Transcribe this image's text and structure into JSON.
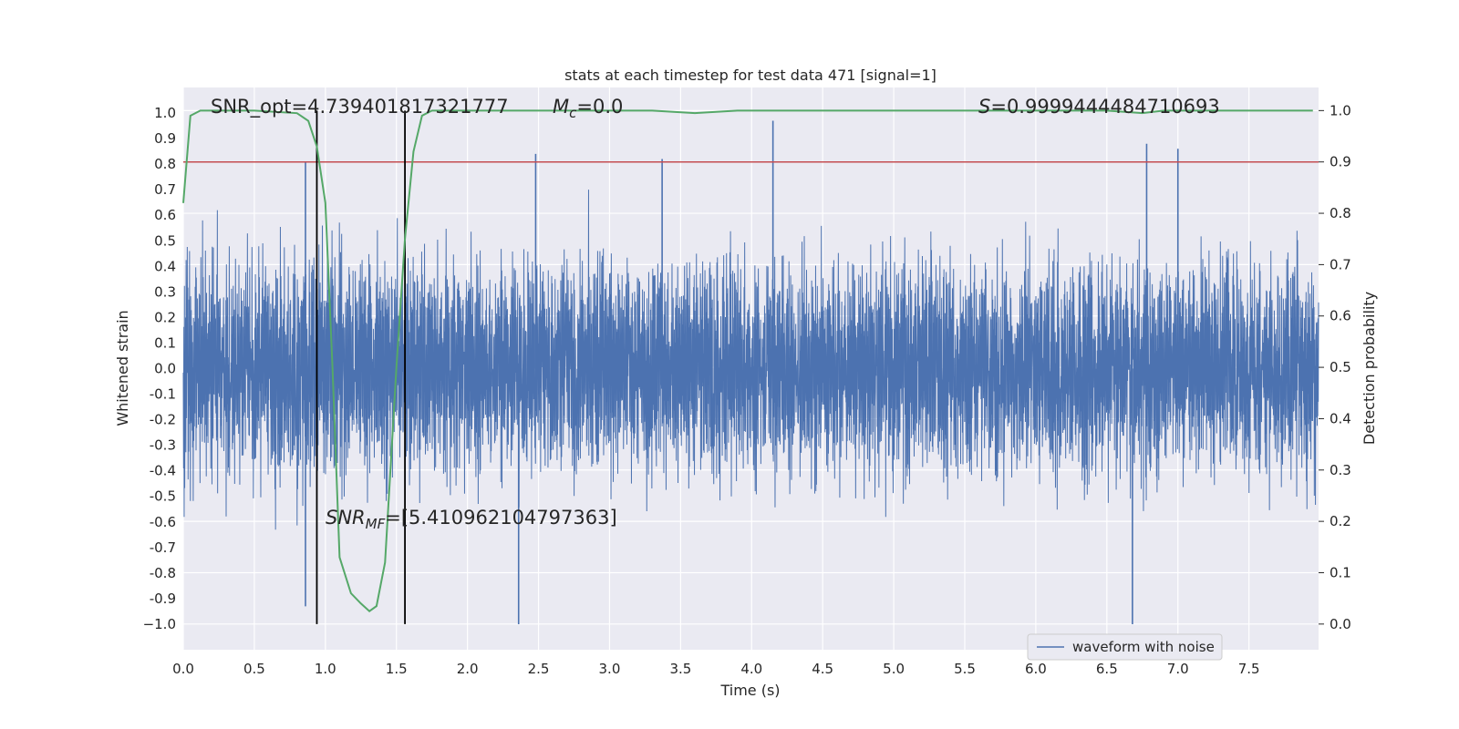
{
  "chart_data": {
    "type": "line",
    "title": "stats at each timestep for test data 471 [signal=1]",
    "xlabel": "Time (s)",
    "ylabel": "Whitened strain",
    "y2label": "Detection probability",
    "xlim": [
      0.0,
      7.99
    ],
    "ylim": [
      -1.1,
      1.1
    ],
    "y2lim": [
      -0.05,
      1.045
    ],
    "x_ticks": [
      "0.0",
      "0.5",
      "1.0",
      "1.5",
      "2.0",
      "2.5",
      "3.0",
      "3.5",
      "4.0",
      "4.5",
      "5.0",
      "5.5",
      "6.0",
      "6.5",
      "7.0",
      "7.5"
    ],
    "y_ticks": [
      "1.0",
      "0.9",
      "0.8",
      "0.7",
      "0.6",
      "0.5",
      "0.4",
      "0.3",
      "0.2",
      "0.1",
      "0.0",
      "-0.1",
      "-0.2",
      "-0.3",
      "-0.4",
      "-0.5",
      "-0.6",
      "-0.7",
      "-0.8",
      "-0.9",
      "−1.0"
    ],
    "y2_ticks": [
      "1.0",
      "0.9",
      "0.8",
      "0.7",
      "0.6",
      "0.5",
      "0.4",
      "0.3",
      "0.2",
      "0.1",
      "0.0"
    ],
    "grid": true,
    "legend_position": "lower-right",
    "series": [
      {
        "name": "waveform with noise",
        "kind": "noisy-strain",
        "color": "#4c72b0",
        "envelope_typical": 0.45,
        "peaks": [
          {
            "x": 0.86,
            "y": 0.81
          },
          {
            "x": 0.86,
            "y": -0.93
          },
          {
            "x": 2.36,
            "y": -1.0
          },
          {
            "x": 2.48,
            "y": 0.84
          },
          {
            "x": 3.37,
            "y": 0.82
          },
          {
            "x": 4.15,
            "y": 0.97
          },
          {
            "x": 6.68,
            "y": -1.0
          },
          {
            "x": 6.78,
            "y": 0.88
          },
          {
            "x": 7.0,
            "y": 0.86
          }
        ]
      },
      {
        "kind": "detection-probability",
        "axis": "right",
        "color": "#55a868",
        "x": [
          0.0,
          0.05,
          0.12,
          0.2,
          0.5,
          0.8,
          0.88,
          0.94,
          1.0,
          1.05,
          1.1,
          1.18,
          1.25,
          1.31,
          1.36,
          1.42,
          1.5,
          1.56,
          1.62,
          1.68,
          1.75,
          2.0,
          3.0,
          3.3,
          3.6,
          3.9,
          4.2,
          5.0,
          6.0,
          6.5,
          6.75,
          6.9,
          7.5,
          7.95
        ],
        "y": [
          0.82,
          0.99,
          1.0,
          1.0,
          1.0,
          0.995,
          0.98,
          0.93,
          0.82,
          0.5,
          0.13,
          0.06,
          0.04,
          0.025,
          0.035,
          0.12,
          0.5,
          0.75,
          0.92,
          0.99,
          1.0,
          1.0,
          1.0,
          1.0,
          0.995,
          1.0,
          1.0,
          1.0,
          1.0,
          1.0,
          0.995,
          1.0,
          1.0,
          1.0
        ]
      },
      {
        "kind": "threshold",
        "axis": "right",
        "color": "#c44e52",
        "y": 0.9
      }
    ],
    "vlines": [
      0.94,
      1.56
    ],
    "annotations": [
      {
        "id": "snr-opt",
        "text": "SNR_opt=4.739401817321777"
      },
      {
        "id": "mc",
        "math": "M",
        "sub": "c",
        "rest": "=0.0"
      },
      {
        "id": "s",
        "math": "S",
        "rest": "=0.9999444484710693"
      },
      {
        "id": "snr-mf",
        "math": "SNR",
        "sub": "MF",
        "rest": "=[5.410962104797363]"
      }
    ]
  }
}
